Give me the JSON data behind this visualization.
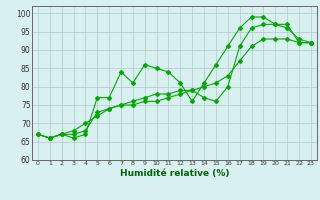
{
  "title": "",
  "xlabel": "Humidité relative (%)",
  "ylabel": "",
  "background_color": "#d8f0f0",
  "grid_color": "#b0c8c8",
  "line_color": "#00aa00",
  "xlim": [
    -0.5,
    23.5
  ],
  "ylim": [
    60,
    102
  ],
  "yticks": [
    60,
    65,
    70,
    75,
    80,
    85,
    90,
    95,
    100
  ],
  "xticks": [
    0,
    1,
    2,
    3,
    4,
    5,
    6,
    7,
    8,
    9,
    10,
    11,
    12,
    13,
    14,
    15,
    16,
    17,
    18,
    19,
    20,
    21,
    22,
    23
  ],
  "series1": [
    67,
    66,
    67,
    66,
    67,
    77,
    77,
    84,
    81,
    86,
    85,
    84,
    81,
    76,
    81,
    86,
    91,
    96,
    99,
    99,
    97,
    97,
    92,
    92
  ],
  "series2": [
    67,
    66,
    67,
    67,
    68,
    73,
    74,
    75,
    75,
    76,
    76,
    77,
    78,
    79,
    80,
    81,
    83,
    87,
    91,
    93,
    93,
    93,
    92,
    92
  ],
  "series3": [
    67,
    66,
    67,
    68,
    70,
    72,
    74,
    75,
    76,
    77,
    78,
    78,
    79,
    79,
    77,
    76,
    80,
    91,
    96,
    97,
    97,
    96,
    93,
    92
  ]
}
